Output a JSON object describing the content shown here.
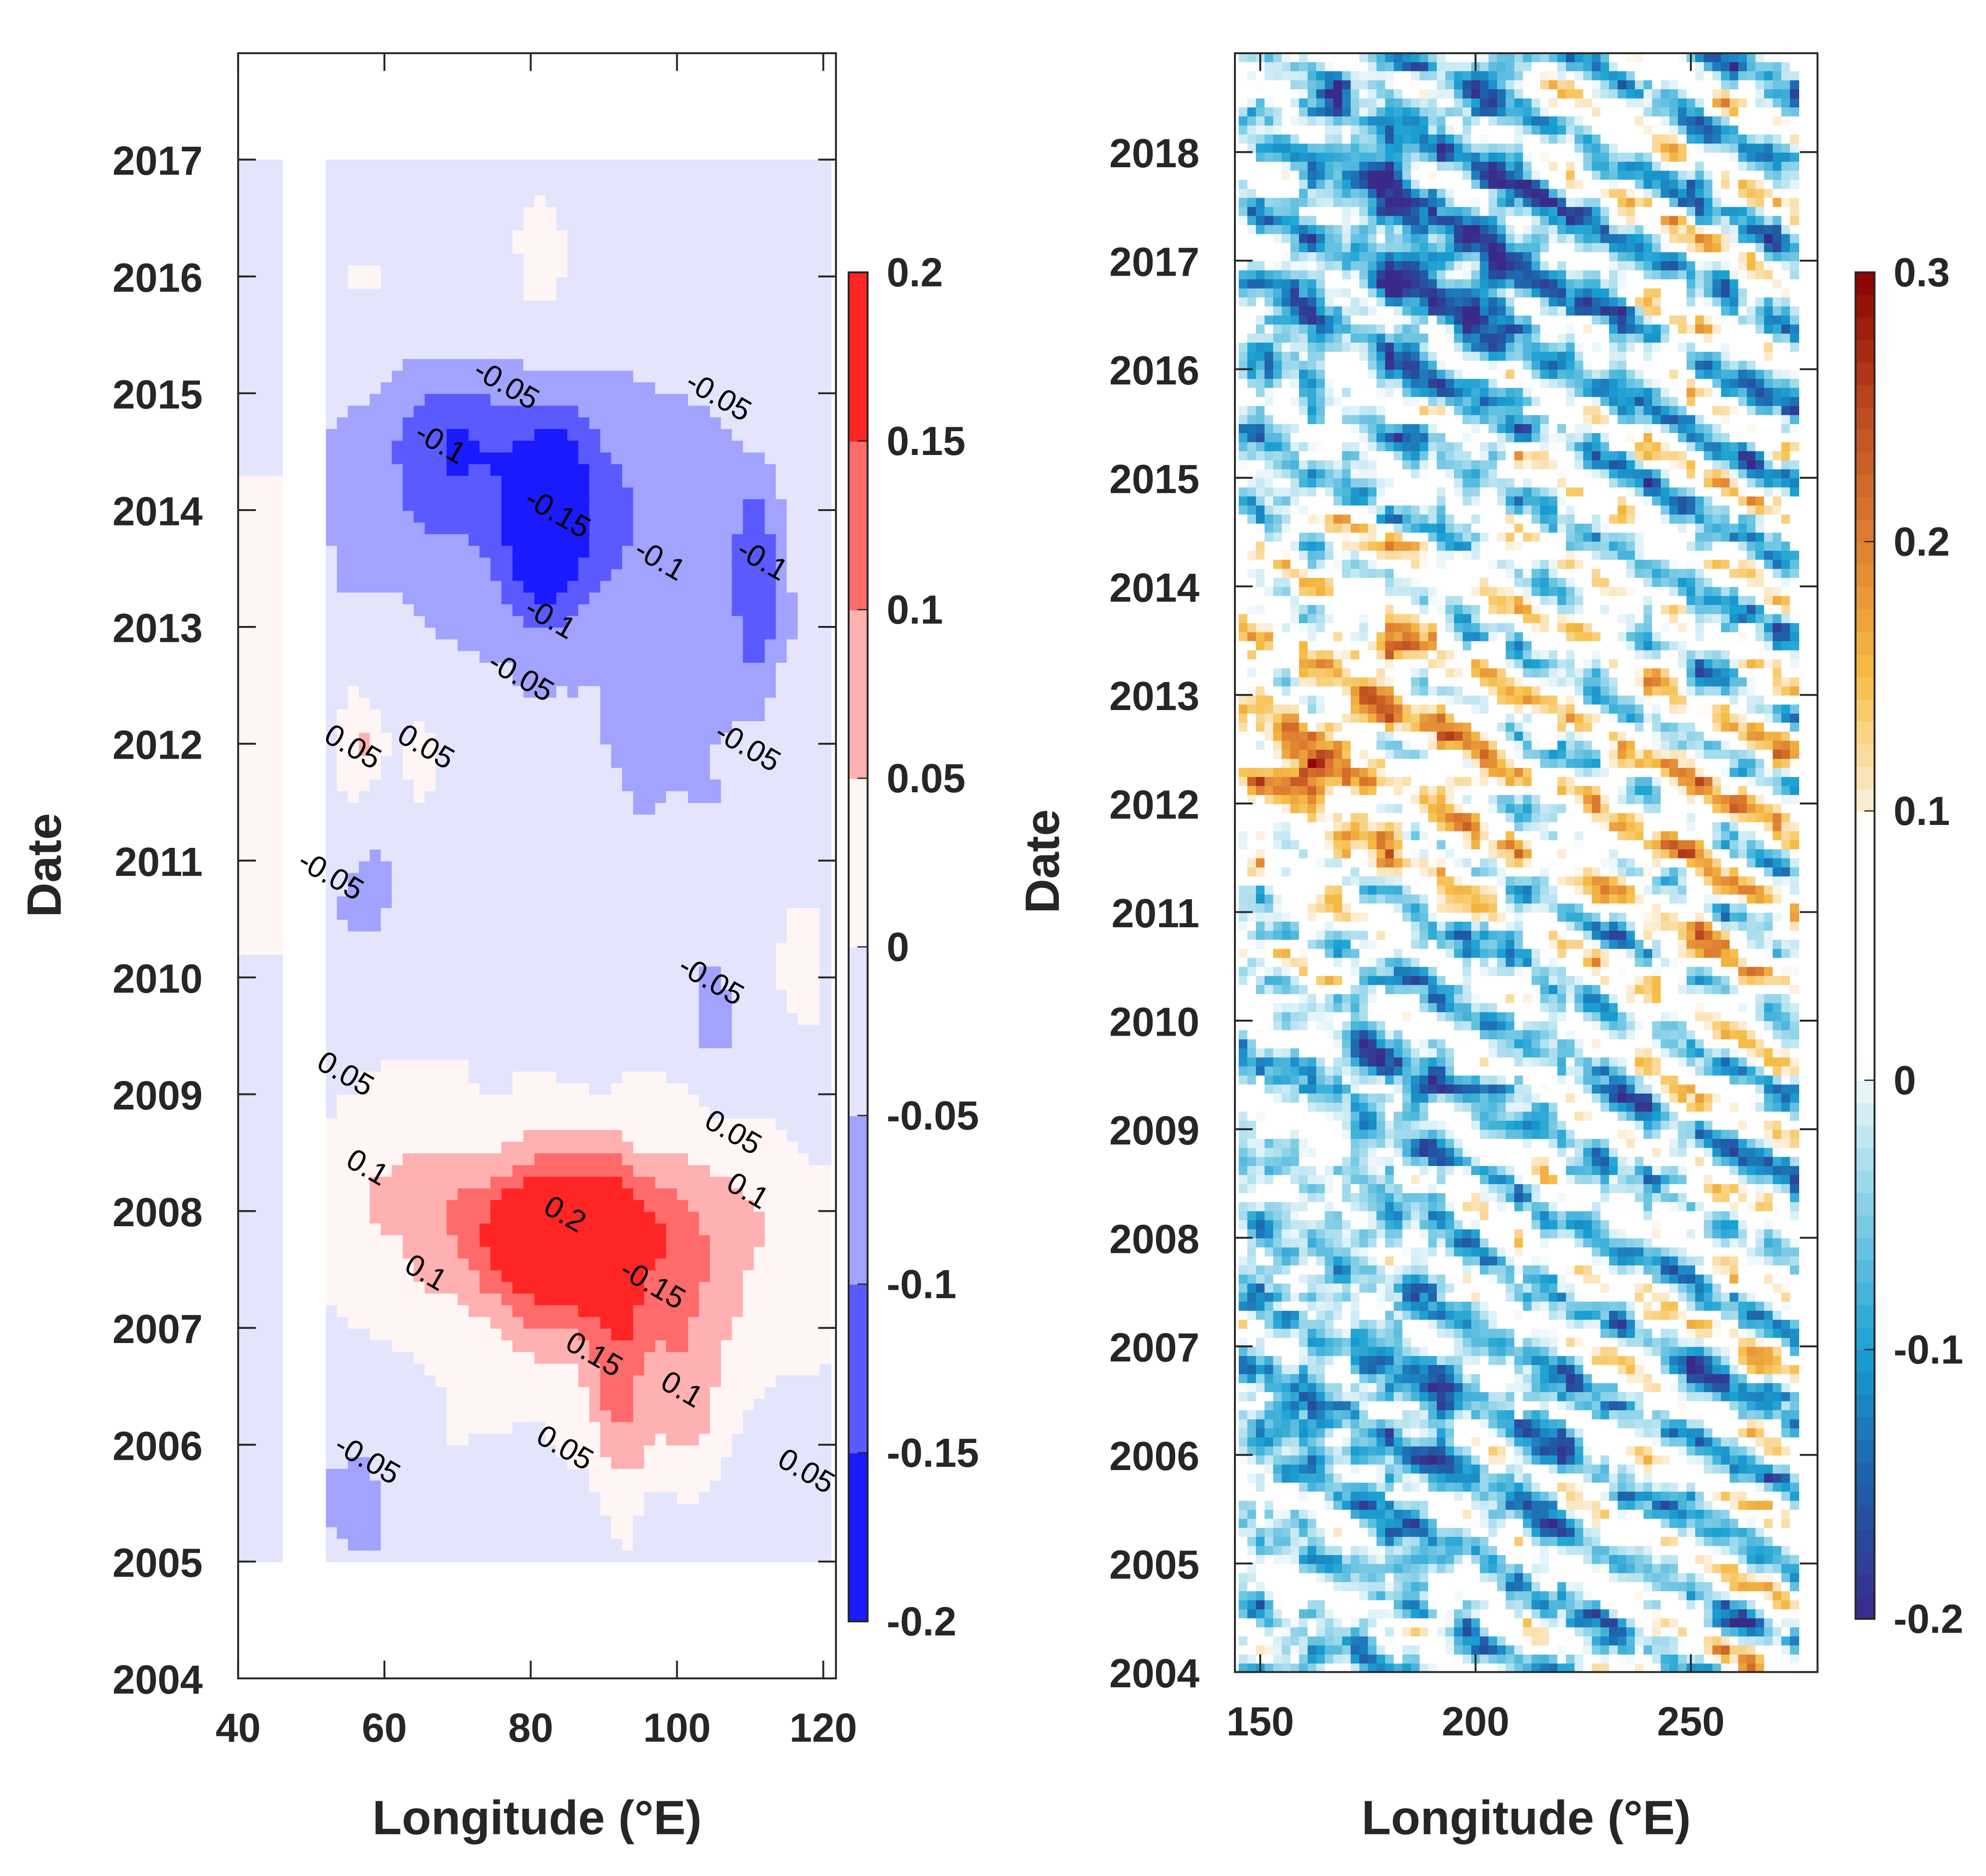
{
  "chart_data": [
    {
      "type": "heatmap",
      "panel": "left",
      "xlabel": "Longitude (°E)",
      "ylabel": "Date",
      "xlim": [
        40,
        122
      ],
      "ylim": [
        2004,
        2017.9
      ],
      "xticks": [
        40,
        60,
        80,
        100,
        120
      ],
      "yticks": [
        2004,
        2005,
        2006,
        2007,
        2008,
        2009,
        2010,
        2011,
        2012,
        2013,
        2014,
        2015,
        2016,
        2017
      ],
      "data_extent": {
        "lon": [
          40,
          120
        ],
        "date": [
          2005,
          2017
        ],
        "missing_lon": [
          46,
          51
        ]
      },
      "colorbar": {
        "type": "discrete",
        "range": [
          -0.2,
          0.2
        ],
        "ticks": [
          "-0.2",
          "-0.15",
          "-0.1",
          "-0.05",
          "0",
          "0.05",
          "0.1",
          "0.15",
          "0.2"
        ],
        "colors": [
          "#1a1aff",
          "#5a5aff",
          "#a2a2ff",
          "#e4e4fc",
          "#fff5f5",
          "#ffb0b0",
          "#ff6a6a",
          "#ff2525"
        ]
      },
      "contour_labels": [
        {
          "lon": 76,
          "date": 2015.0,
          "text": "-0.05"
        },
        {
          "lon": 67,
          "date": 2014.5,
          "text": "-0.1"
        },
        {
          "lon": 83,
          "date": 2013.9,
          "text": "-0.15"
        },
        {
          "lon": 97,
          "date": 2013.5,
          "text": "-0.1"
        },
        {
          "lon": 105,
          "date": 2014.9,
          "text": "-0.05"
        },
        {
          "lon": 111,
          "date": 2013.5,
          "text": "-0.1"
        },
        {
          "lon": 82,
          "date": 2013.0,
          "text": "-0.1"
        },
        {
          "lon": 78,
          "date": 2012.5,
          "text": "-0.05"
        },
        {
          "lon": 55,
          "date": 2011.9,
          "text": "0.05"
        },
        {
          "lon": 65,
          "date": 2011.9,
          "text": "0.05"
        },
        {
          "lon": 109,
          "date": 2011.9,
          "text": "-0.05"
        },
        {
          "lon": 52,
          "date": 2010.8,
          "text": "-0.05"
        },
        {
          "lon": 104,
          "date": 2009.9,
          "text": "-0.05"
        },
        {
          "lon": 54,
          "date": 2009.1,
          "text": "0.05"
        },
        {
          "lon": 107,
          "date": 2008.6,
          "text": "0.05"
        },
        {
          "lon": 109,
          "date": 2008.1,
          "text": "0.1"
        },
        {
          "lon": 57,
          "date": 2008.3,
          "text": "0.1"
        },
        {
          "lon": 84,
          "date": 2007.9,
          "text": "0.2"
        },
        {
          "lon": 96,
          "date": 2007.3,
          "text": "-0.15"
        },
        {
          "lon": 65,
          "date": 2007.4,
          "text": "0.1"
        },
        {
          "lon": 88,
          "date": 2006.7,
          "text": "0.15"
        },
        {
          "lon": 100,
          "date": 2006.4,
          "text": "0.1"
        },
        {
          "lon": 84,
          "date": 2005.9,
          "text": "0.05"
        },
        {
          "lon": 57,
          "date": 2005.8,
          "text": "-0.05"
        },
        {
          "lon": 117,
          "date": 2005.7,
          "text": "0.05"
        }
      ]
    },
    {
      "type": "heatmap",
      "panel": "right",
      "xlabel": "Longitude (°E)",
      "ylabel": "Date",
      "xlim": [
        144,
        279
      ],
      "ylim": [
        2004,
        2018.9
      ],
      "xticks": [
        150,
        200,
        250
      ],
      "yticks": [
        2004,
        2005,
        2006,
        2007,
        2008,
        2009,
        2010,
        2011,
        2012,
        2013,
        2014,
        2015,
        2016,
        2017,
        2018
      ],
      "data_extent": {
        "lon": [
          145,
          274
        ],
        "date": [
          2004,
          2018.9
        ]
      },
      "colorbar": {
        "type": "continuous",
        "range": [
          -0.2,
          0.3
        ],
        "ticks": [
          "-0.2",
          "-0.1",
          "0",
          "0.1",
          "0.2",
          "0.3"
        ],
        "stops": [
          {
            "value": -0.2,
            "color": "#3a2a88"
          },
          {
            "value": -0.15,
            "color": "#1f5ea8"
          },
          {
            "value": -0.1,
            "color": "#1aa0d2"
          },
          {
            "value": -0.05,
            "color": "#80cde6"
          },
          {
            "value": 0,
            "color": "#eef8fb"
          },
          {
            "value": 0.005,
            "color": "#ffffff"
          },
          {
            "value": 0.095,
            "color": "#ffffff"
          },
          {
            "value": 0.1,
            "color": "#fdf0dc"
          },
          {
            "value": 0.15,
            "color": "#f6bd45"
          },
          {
            "value": 0.2,
            "color": "#df7f30"
          },
          {
            "value": 0.25,
            "color": "#bb4a20"
          },
          {
            "value": 0.3,
            "color": "#8b0000"
          }
        ]
      }
    }
  ]
}
